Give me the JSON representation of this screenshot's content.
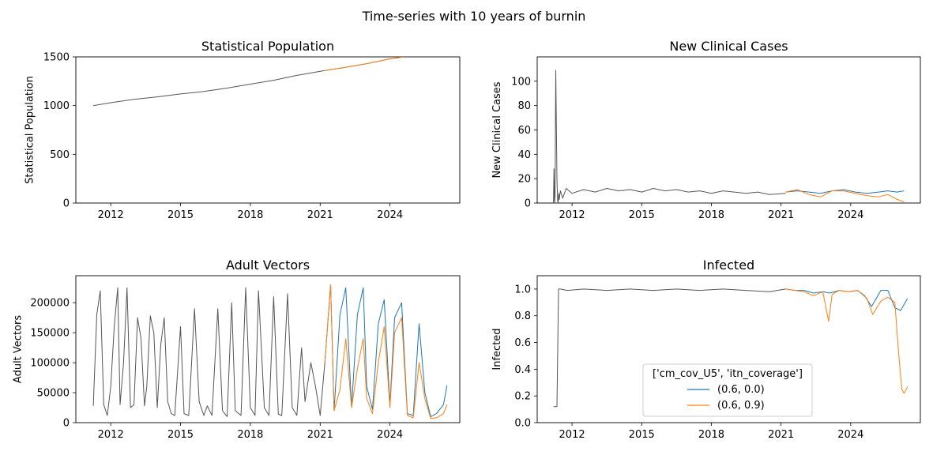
{
  "figure": {
    "suptitle": "Time-series with 10 years of burnin"
  },
  "legend": {
    "title": "['cm_cov_U5', 'itn_coverage']",
    "entries": [
      {
        "label": "(0.6, 0.0)",
        "color": "#1f77b4"
      },
      {
        "label": "(0.6, 0.9)",
        "color": "#ff7f0e"
      }
    ],
    "placement": "lower-center of Infected panel"
  },
  "colors": {
    "burnin": "#555555",
    "series_a": "#1f77b4",
    "series_b": "#ff7f0e"
  },
  "chart_data": [
    {
      "type": "line",
      "title": "Statistical Population",
      "ylabel": "Statistical Population",
      "xlabel": "",
      "xlim": [
        2010.5,
        2027.0
      ],
      "ylim": [
        0,
        1500
      ],
      "xticks": [
        2012,
        2015,
        2018,
        2021,
        2024
      ],
      "xtick_labels": [
        "2012",
        "2015",
        "2018",
        "2021",
        "2024"
      ],
      "yticks": [
        0,
        500,
        1000,
        1500
      ],
      "ytick_labels": [
        "0",
        "500",
        "1000",
        "1500"
      ],
      "grid": false,
      "series": [
        {
          "role": "burnin",
          "x": [
            2011.25,
            2012.0,
            2013.0,
            2014.0,
            2015.0,
            2016.0,
            2017.0,
            2018.0,
            2019.0,
            2020.0,
            2021.2
          ],
          "y": [
            1000,
            1030,
            1065,
            1090,
            1120,
            1145,
            1180,
            1220,
            1260,
            1310,
            1360
          ]
        },
        {
          "role": "series_a",
          "x": [
            2021.2,
            2022.0,
            2023.0,
            2024.0,
            2024.6
          ],
          "y": [
            1360,
            1390,
            1430,
            1480,
            1500
          ]
        },
        {
          "role": "series_b",
          "x": [
            2021.2,
            2022.0,
            2023.0,
            2024.0,
            2024.6
          ],
          "y": [
            1360,
            1390,
            1430,
            1480,
            1500
          ]
        }
      ]
    },
    {
      "type": "line",
      "title": "New Clinical Cases",
      "ylabel": "New Clinical Cases",
      "xlabel": "",
      "xlim": [
        2010.5,
        2027.0
      ],
      "ylim": [
        0,
        120
      ],
      "xticks": [
        2012,
        2015,
        2018,
        2021,
        2024
      ],
      "xtick_labels": [
        "2012",
        "2015",
        "2018",
        "2021",
        "2024"
      ],
      "yticks": [
        0,
        20,
        40,
        60,
        80,
        100
      ],
      "ytick_labels": [
        "0",
        "20",
        "40",
        "60",
        "80",
        "100"
      ],
      "grid": false,
      "series": [
        {
          "role": "burnin",
          "x": [
            2011.2,
            2011.22,
            2011.25,
            2011.27,
            2011.3,
            2011.35,
            2011.38,
            2011.4,
            2011.43,
            2011.45,
            2011.5,
            2011.6,
            2011.75,
            2012.0,
            2012.5,
            2013.0,
            2013.5,
            2014.0,
            2014.5,
            2015.0,
            2015.5,
            2016.0,
            2016.5,
            2017.0,
            2017.5,
            2018.0,
            2018.5,
            2019.0,
            2019.5,
            2020.0,
            2020.5,
            2021.2
          ],
          "y": [
            0,
            28,
            0,
            5,
            109,
            20,
            2,
            0,
            8,
            3,
            10,
            4,
            12,
            8,
            11,
            9,
            12,
            10,
            11,
            9,
            12,
            10,
            11,
            9,
            10,
            8,
            10,
            9,
            8,
            9,
            7,
            8
          ]
        },
        {
          "role": "series_a",
          "x": [
            2021.2,
            2021.7,
            2022.2,
            2022.7,
            2023.2,
            2023.7,
            2024.2,
            2024.7,
            2025.2,
            2025.6,
            2026.0,
            2026.3
          ],
          "y": [
            9,
            10,
            9,
            8,
            10,
            11,
            9,
            8,
            9,
            10,
            9,
            10
          ]
        },
        {
          "role": "series_b",
          "x": [
            2021.2,
            2021.7,
            2022.2,
            2022.7,
            2023.2,
            2023.7,
            2024.2,
            2024.7,
            2025.2,
            2025.6,
            2026.0,
            2026.3
          ],
          "y": [
            9,
            11,
            7,
            5,
            10,
            10,
            8,
            6,
            5,
            7,
            3,
            1
          ]
        }
      ]
    },
    {
      "type": "line",
      "title": "Adult Vectors",
      "ylabel": "Adult Vectors",
      "xlabel": "",
      "xlim": [
        2010.5,
        2027.0
      ],
      "ylim": [
        0,
        245000
      ],
      "xticks": [
        2012,
        2015,
        2018,
        2021,
        2024
      ],
      "xtick_labels": [
        "2012",
        "2015",
        "2018",
        "2021",
        "2024"
      ],
      "yticks": [
        0,
        50000,
        100000,
        150000,
        200000
      ],
      "ytick_labels": [
        "0",
        "50000",
        "100000",
        "150000",
        "200000"
      ],
      "grid": false,
      "series": [
        {
          "role": "burnin",
          "x": [
            2011.25,
            2011.4,
            2011.55,
            2011.7,
            2011.85,
            2012.0,
            2012.15,
            2012.3,
            2012.4,
            2012.55,
            2012.7,
            2012.85,
            2013.0,
            2013.15,
            2013.3,
            2013.45,
            2013.55,
            2013.7,
            2013.85,
            2014.0,
            2014.15,
            2014.3,
            2014.45,
            2014.6,
            2014.75,
            2015.0,
            2015.15,
            2015.35,
            2015.6,
            2015.8,
            2016.0,
            2016.15,
            2016.35,
            2016.6,
            2016.8,
            2017.0,
            2017.2,
            2017.35,
            2017.6,
            2017.8,
            2018.0,
            2018.2,
            2018.35,
            2018.6,
            2018.8,
            2019.0,
            2019.2,
            2019.35,
            2019.6,
            2019.8,
            2020.0,
            2020.2,
            2020.35,
            2020.6,
            2020.8,
            2021.0,
            2021.2
          ],
          "y": [
            28000,
            180000,
            220000,
            30000,
            12000,
            60000,
            160000,
            225000,
            30000,
            100000,
            225000,
            25000,
            30000,
            175000,
            140000,
            28000,
            60000,
            178000,
            150000,
            25000,
            130000,
            175000,
            35000,
            15000,
            12000,
            160000,
            15000,
            12000,
            190000,
            35000,
            12000,
            28000,
            12000,
            190000,
            20000,
            10000,
            200000,
            20000,
            12000,
            225000,
            25000,
            12000,
            220000,
            25000,
            12000,
            210000,
            14000,
            12000,
            215000,
            25000,
            12000,
            125000,
            35000,
            100000,
            60000,
            12000,
            100000
          ]
        },
        {
          "role": "series_a",
          "x": [
            2021.2,
            2021.45,
            2021.6,
            2021.85,
            2022.1,
            2022.35,
            2022.6,
            2022.85,
            2023.0,
            2023.25,
            2023.5,
            2023.75,
            2024.0,
            2024.2,
            2024.5,
            2024.75,
            2025.0,
            2025.25,
            2025.5,
            2025.75,
            2026.0,
            2026.3,
            2026.45
          ],
          "y": [
            100000,
            230000,
            20000,
            180000,
            225000,
            25000,
            180000,
            225000,
            60000,
            22000,
            165000,
            205000,
            30000,
            175000,
            200000,
            15000,
            12000,
            165000,
            50000,
            10000,
            15000,
            30000,
            62000
          ]
        },
        {
          "role": "series_b",
          "x": [
            2021.2,
            2021.45,
            2021.6,
            2021.85,
            2022.1,
            2022.35,
            2022.6,
            2022.85,
            2023.0,
            2023.25,
            2023.5,
            2023.75,
            2024.0,
            2024.2,
            2024.5,
            2024.75,
            2025.0,
            2025.25,
            2025.5,
            2025.75,
            2026.0,
            2026.3,
            2026.45
          ],
          "y": [
            100000,
            230000,
            20000,
            55000,
            140000,
            25000,
            90000,
            140000,
            40000,
            15000,
            100000,
            160000,
            25000,
            150000,
            175000,
            12000,
            8000,
            100000,
            40000,
            7000,
            8000,
            15000,
            30000
          ]
        }
      ]
    },
    {
      "type": "line",
      "title": "Infected",
      "ylabel": "Infected",
      "xlabel": "",
      "xlim": [
        2010.5,
        2027.0
      ],
      "ylim": [
        0.0,
        1.1
      ],
      "xticks": [
        2012,
        2015,
        2018,
        2021,
        2024
      ],
      "xtick_labels": [
        "2012",
        "2015",
        "2018",
        "2021",
        "2024"
      ],
      "yticks": [
        0.0,
        0.2,
        0.4,
        0.6,
        0.8,
        1.0
      ],
      "ytick_labels": [
        "0.0",
        "0.2",
        "0.4",
        "0.6",
        "0.8",
        "1.0"
      ],
      "grid": false,
      "series": [
        {
          "role": "burnin",
          "x": [
            2011.2,
            2011.35,
            2011.42,
            2011.5,
            2011.8,
            2012.5,
            2013.5,
            2014.5,
            2015.5,
            2016.5,
            2017.5,
            2018.5,
            2019.5,
            2020.5,
            2021.2
          ],
          "y": [
            0.12,
            0.12,
            1.0,
            1.0,
            0.99,
            1.0,
            0.99,
            1.0,
            0.99,
            1.0,
            0.99,
            1.0,
            0.99,
            0.98,
            1.0
          ]
        },
        {
          "role": "series_a",
          "x": [
            2021.2,
            2021.6,
            2022.0,
            2022.4,
            2022.8,
            2023.1,
            2023.5,
            2023.9,
            2024.3,
            2024.6,
            2024.9,
            2025.3,
            2025.6,
            2025.9,
            2026.15,
            2026.45
          ],
          "y": [
            1.0,
            0.99,
            0.99,
            0.97,
            0.98,
            0.97,
            0.99,
            0.98,
            0.99,
            0.95,
            0.87,
            0.99,
            0.99,
            0.86,
            0.84,
            0.93
          ]
        },
        {
          "role": "series_b",
          "x": [
            2021.2,
            2021.6,
            2022.0,
            2022.4,
            2022.8,
            2023.05,
            2023.2,
            2023.5,
            2023.9,
            2024.3,
            2024.7,
            2024.95,
            2025.3,
            2025.6,
            2025.9,
            2026.05,
            2026.2,
            2026.3,
            2026.45
          ],
          "y": [
            1.0,
            0.99,
            0.98,
            0.95,
            0.98,
            0.76,
            0.96,
            0.99,
            0.98,
            0.99,
            0.93,
            0.81,
            0.91,
            0.94,
            0.9,
            0.55,
            0.25,
            0.22,
            0.27
          ]
        }
      ]
    }
  ]
}
